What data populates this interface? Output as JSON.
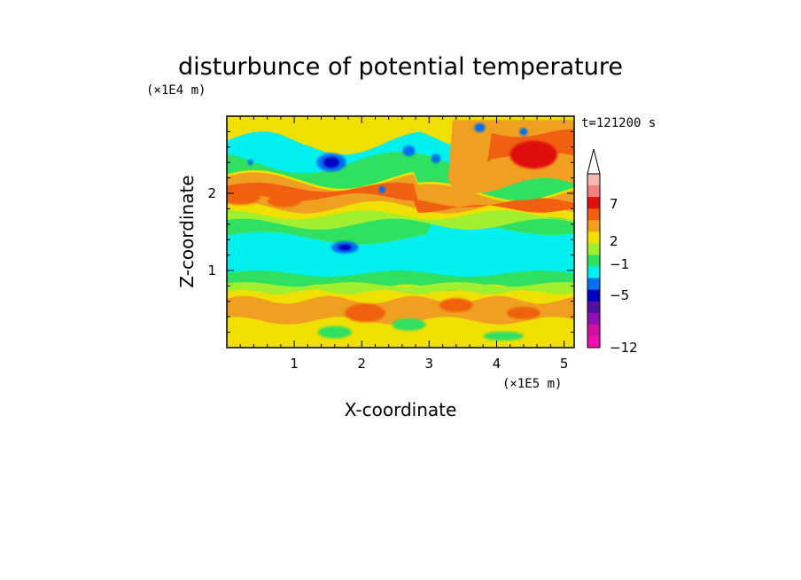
{
  "chart_data": {
    "type": "heatmap",
    "title": "disturbunce of potential temperature",
    "xlabel": "X-coordinate",
    "ylabel": "Z-coordinate",
    "x_unit": "(×1E5 m)",
    "y_unit": "(×1E4 m)",
    "time_label": "t=121200 s",
    "xlim": [
      0,
      5.15
    ],
    "ylim": [
      0,
      3.0
    ],
    "x_ticks": [
      1,
      2,
      3,
      4,
      5
    ],
    "y_ticks": [
      1,
      2
    ],
    "colorbar": {
      "labels": [
        "7",
        "2",
        "−1",
        "−5",
        "−12"
      ],
      "colors": [
        "#f7b6b6",
        "#f08080",
        "#e01010",
        "#f06010",
        "#f0a020",
        "#f0e000",
        "#a0f030",
        "#30e060",
        "#00f0f0",
        "#0070f0",
        "#0000c0",
        "#5010a0",
        "#9010b0",
        "#d010a0",
        "#f010b0"
      ]
    },
    "bands": [
      {
        "z_range": [
          0.0,
          0.15
        ],
        "dominant_level": "1 to 2"
      },
      {
        "z_range": [
          0.15,
          0.7
        ],
        "dominant_level": "2 to 4"
      },
      {
        "z_range": [
          0.7,
          0.95
        ],
        "dominant_level": "0 to 1"
      },
      {
        "z_range": [
          0.95,
          1.45
        ],
        "dominant_level": "-1 to 0"
      },
      {
        "z_range": [
          1.45,
          1.8
        ],
        "dominant_level": "0 to 2"
      },
      {
        "z_range": [
          1.8,
          2.2
        ],
        "dominant_level": "2 to 5"
      },
      {
        "z_range": [
          2.2,
          3.0
        ],
        "dominant_level": "mixed -5 to 7"
      }
    ],
    "cold_cores": [
      {
        "x": 1.55,
        "z": 2.4
      },
      {
        "x": 2.7,
        "z": 2.55
      },
      {
        "x": 3.1,
        "z": 2.45
      },
      {
        "x": 1.75,
        "z": 1.3
      },
      {
        "x": 3.75,
        "z": 2.85
      },
      {
        "x": 4.4,
        "z": 2.8
      }
    ]
  }
}
